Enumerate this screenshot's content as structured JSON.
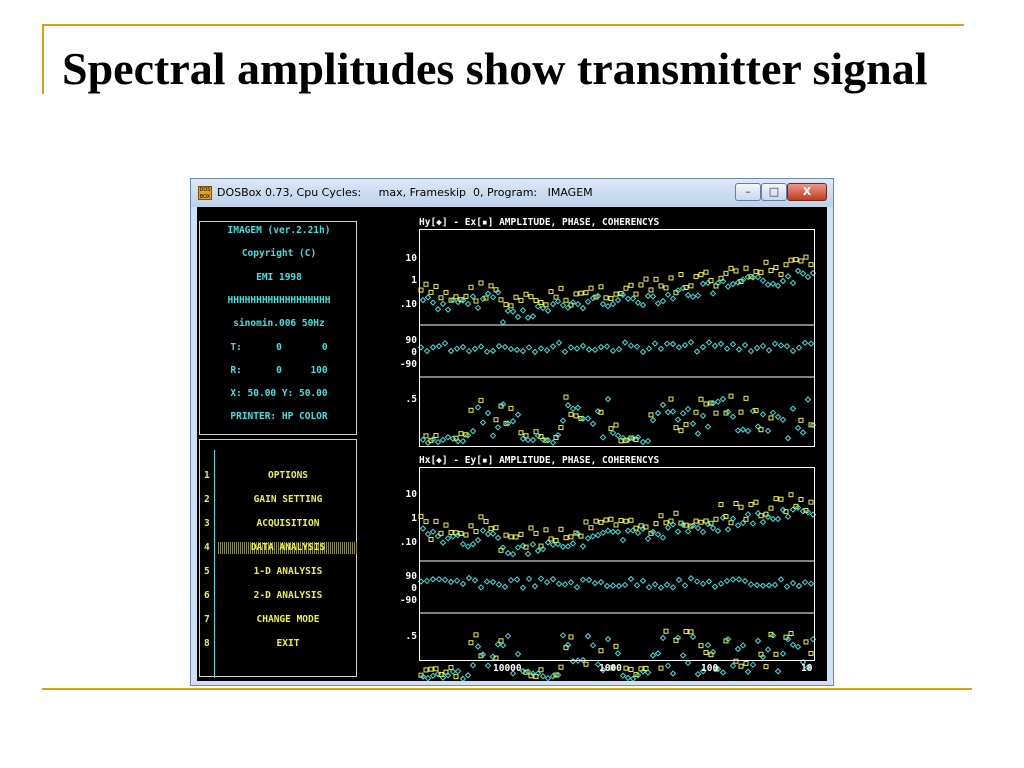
{
  "slide": {
    "title": "Spectral amplitudes show transmitter signal"
  },
  "window": {
    "title": "DOSBox 0.73, Cpu Cycles:     max, Frameskip  0, Program:   IMAGEM",
    "icon_text": "DOS BOX",
    "minimize_glyph": "–",
    "maximize_glyph": "□",
    "close_glyph": "X"
  },
  "info": {
    "lines": [
      "IMAGEM (ver.2.21h)",
      "Copyright (C)",
      "EMI 1998",
      "HHHHHHHHHHHHHHHHHH",
      "sinomin.006 50Hz",
      "T:      0       0",
      "R:      0     100",
      "X: 50.00 Y: 50.00",
      "PRINTER: HP COLOR"
    ]
  },
  "menu": {
    "items": [
      {
        "num": "1",
        "label": "OPTIONS"
      },
      {
        "num": "2",
        "label": "GAIN SETTING"
      },
      {
        "num": "3",
        "label": "ACQUISITION"
      },
      {
        "num": "4",
        "label": "DATA ANALYSIS",
        "selected": true
      },
      {
        "num": "5",
        "label": "1-D ANALYSIS"
      },
      {
        "num": "6",
        "label": "2-D ANALYSIS"
      },
      {
        "num": "7",
        "label": "CHANGE MODE"
      },
      {
        "num": "8",
        "label": "EXIT"
      }
    ]
  },
  "plots": {
    "top": {
      "title": "Hy[◆] - Ex[▪] AMPLITUDE, PHASE, COHERENCYS",
      "amp_labels": [
        "10",
        "1",
        ".10"
      ],
      "phase_labels": [
        "90",
        "0",
        "-90"
      ],
      "coh_labels": [
        ".5"
      ]
    },
    "bottom": {
      "title": "Hx[◆] - Ey[▪] AMPLITUDE, PHASE, COHERENCYS",
      "amp_labels": [
        "10",
        "1",
        ".10"
      ],
      "phase_labels": [
        "90",
        "0",
        "-90"
      ],
      "coh_labels": [
        ".5"
      ],
      "x_ticks": [
        "10000",
        "1000",
        "100",
        "10"
      ]
    }
  },
  "colors": {
    "cyan": "#40e0e0",
    "yellow": "#f0f040",
    "accent": "#d4a017"
  }
}
